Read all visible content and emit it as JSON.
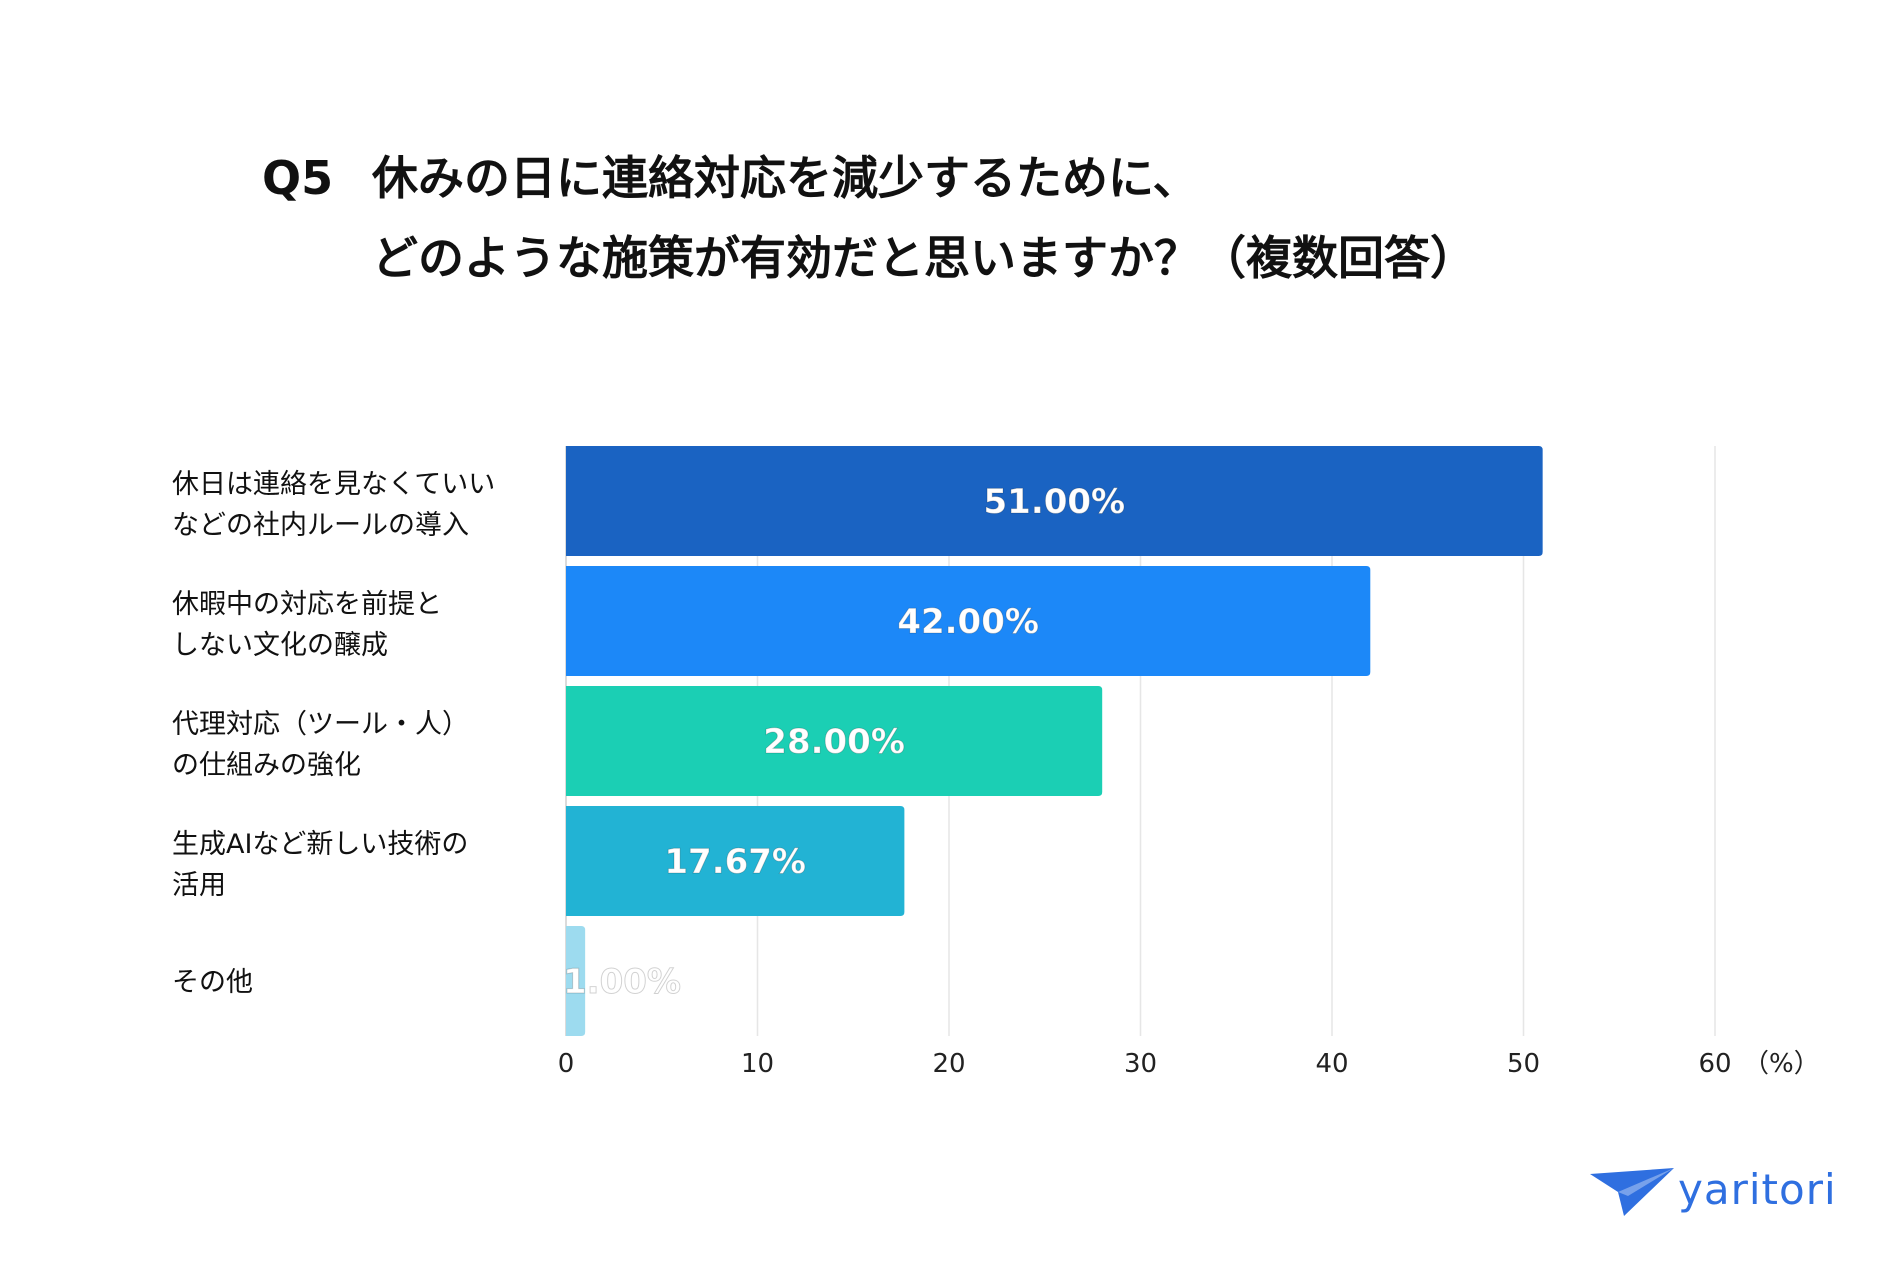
{
  "title": {
    "number": "Q5",
    "line1": "休みの日に連絡対応を減少するために、",
    "line2": "どのような施策が有効だと思いますか？（複数回答）"
  },
  "chart_data": {
    "type": "bar",
    "orientation": "horizontal",
    "categories": [
      [
        "休日は連絡を見なくていい",
        "などの社内ルールの導入"
      ],
      [
        "休暇中の対応を前提と",
        "しない文化の醸成"
      ],
      [
        "代理対応（ツール・人）",
        "の仕組みの強化"
      ],
      [
        "生成AIなど新しい技術の",
        "活用"
      ],
      [
        "その他"
      ]
    ],
    "values": [
      51.0,
      42.0,
      28.0,
      17.67,
      1.0
    ],
    "data_labels": [
      "51.00%",
      "42.00%",
      "28.00%",
      "17.67%",
      "1.00%"
    ],
    "bar_colors": [
      "#1a63c2",
      "#1c88f8",
      "#1bcfb4",
      "#22b3d4",
      "#9ddbef"
    ],
    "xlim": [
      0,
      60
    ],
    "xticks": [
      "0",
      "10",
      "20",
      "30",
      "40",
      "50",
      "60"
    ],
    "x_unit": "（%）",
    "grid": true
  },
  "logo": {
    "text": "yaritori",
    "color": "#2f6fe0"
  }
}
